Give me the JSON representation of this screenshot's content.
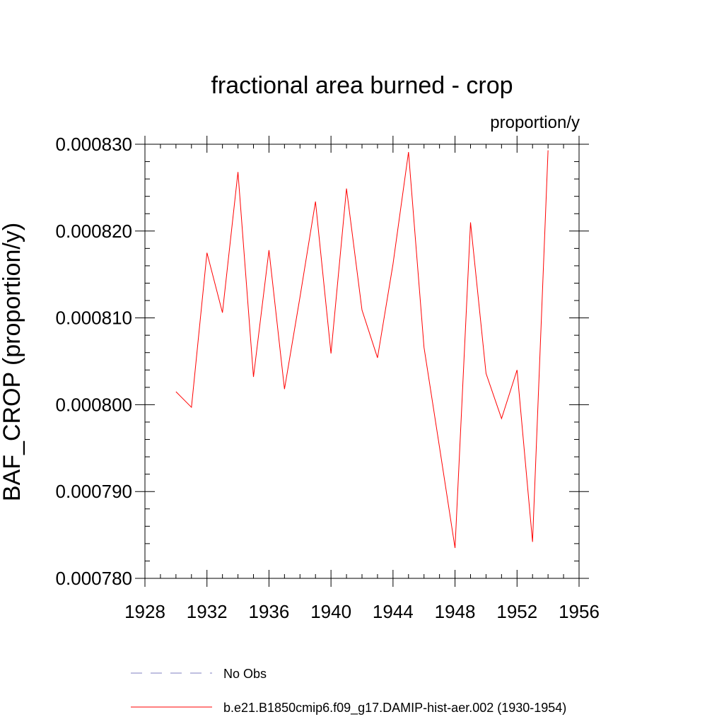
{
  "chart_data": {
    "type": "line",
    "title": "fractional area burned - crop",
    "units": "proportion/y",
    "ylabel": "BAF_CROP  (proportion/y)",
    "xlabel": "",
    "xlim": [
      1928,
      1956
    ],
    "ylim": [
      0.00078,
      0.00083
    ],
    "x_ticks": [
      1928,
      1932,
      1936,
      1940,
      1944,
      1948,
      1952,
      1956
    ],
    "y_ticks": [
      "0.000780",
      "0.000790",
      "0.000800",
      "0.000810",
      "0.000820",
      "0.000830"
    ],
    "grid": false,
    "legend_position": "bottom",
    "series": [
      {
        "name": "b.e21.B1850cmip6.f09_g17.DAMIP-hist-aer.002 (1930-1954)",
        "color": "#ff0000",
        "style": "solid",
        "x": [
          1930,
          1931,
          1932,
          1933,
          1934,
          1935,
          1936,
          1937,
          1938,
          1939,
          1940,
          1941,
          1942,
          1943,
          1944,
          1945,
          1946,
          1947,
          1948,
          1949,
          1950,
          1951,
          1952,
          1953,
          1954
        ],
        "values": [
          0.0008015,
          0.0007997,
          0.0008175,
          0.0008106,
          0.0008268,
          0.0008032,
          0.0008178,
          0.0008018,
          0.0008124,
          0.0008234,
          0.0008059,
          0.0008249,
          0.0008109,
          0.0008054,
          0.0008162,
          0.0008291,
          0.0008066,
          0.0007951,
          0.0007835,
          0.000821,
          0.0008036,
          0.0007984,
          0.000804,
          0.0007842,
          0.0008293
        ]
      }
    ],
    "legend": [
      {
        "label": "No Obs",
        "color": "#8080c0",
        "style": "dashed"
      },
      {
        "label": "b.e21.B1850cmip6.f09_g17.DAMIP-hist-aer.002 (1930-1954)",
        "color": "#ff0000",
        "style": "solid"
      }
    ]
  }
}
